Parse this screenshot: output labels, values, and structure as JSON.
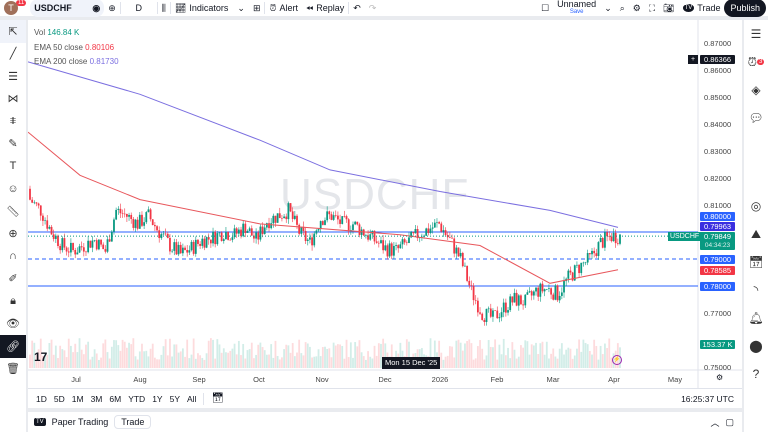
{
  "toolbar": {
    "avatar": "T",
    "badge": "11",
    "symbol": "USDCHF",
    "interval": "D",
    "indicators": "Indicators",
    "alert": "Alert",
    "replay": "Replay",
    "layout_name": "Unnamed",
    "layout_save": "Save",
    "trade": "Trade",
    "publish": "Publish"
  },
  "legend": {
    "vol_label": "Vol",
    "vol_value": "146.84 K",
    "ema50_label": "EMA 50 close",
    "ema50_value": "0.80106",
    "ema200_label": "EMA 200 close",
    "ema200_value": "0.81730"
  },
  "watermark": "USDCHF",
  "price_axis": {
    "labels": [
      "0.87000",
      "0.86000",
      "0.85000",
      "0.84000",
      "0.83000",
      "0.82000",
      "0.81000",
      "0.77000",
      "0.75000"
    ],
    "crosshair_price": "0.86366",
    "tags": {
      "t80000": "0.80000",
      "t79963": "0.79963",
      "last": "0.79849",
      "countdown": "04:34:23",
      "symbol_tag": "USDCHF",
      "t79000": "0.79000",
      "t78585": "0.78585",
      "t78000": "0.78000",
      "vol": "153.37 K"
    }
  },
  "time_axis": {
    "labels": [
      "Jul",
      "Aug",
      "Sep",
      "Oct",
      "Nov",
      "Dec",
      "2026",
      "Feb",
      "Mar",
      "Apr",
      "May"
    ],
    "crosshair_date": "Mon 15 Dec '25"
  },
  "range_bar": {
    "ranges": [
      "1D",
      "5D",
      "1M",
      "3M",
      "6M",
      "YTD",
      "1Y",
      "5Y",
      "All"
    ],
    "clock": "16:25:37 UTC"
  },
  "bottom": {
    "paper_trading": "Paper Trading",
    "trade": "Trade"
  },
  "alerts_badge": "3",
  "colors": {
    "up": "#089981",
    "down": "#f23645",
    "ema50": "#e8575c",
    "ema200": "#7b6fe0",
    "line": "#2962ff"
  },
  "chart_data": {
    "type": "candlestick",
    "symbol": "USDCHF",
    "interval": "D",
    "ylim": [
      0.75,
      0.875
    ],
    "weekly_closes": [
      0.812,
      0.808,
      0.8,
      0.795,
      0.793,
      0.795,
      0.797,
      0.793,
      0.808,
      0.806,
      0.803,
      0.806,
      0.8,
      0.795,
      0.7918,
      0.794,
      0.797,
      0.798,
      0.8,
      0.799,
      0.802,
      0.797,
      0.804,
      0.806,
      0.808,
      0.8,
      0.796,
      0.805,
      0.806,
      0.803,
      0.803,
      0.8,
      0.797,
      0.794,
      0.793,
      0.796,
      0.799,
      0.801,
      0.803,
      0.797,
      0.79,
      0.778,
      0.77,
      0.768,
      0.772,
      0.775,
      0.774,
      0.778,
      0.779,
      0.777,
      0.783,
      0.787,
      0.79,
      0.796,
      0.79849
    ],
    "ema200": [
      0.863,
      0.851,
      0.834,
      0.823,
      0.815,
      0.808,
      0.8017
    ],
    "ema50": [
      0.837,
      0.821,
      0.812,
      0.803,
      0.799,
      0.795,
      0.781,
      0.786
    ],
    "hlines": [
      0.8,
      0.79,
      0.78
    ]
  }
}
